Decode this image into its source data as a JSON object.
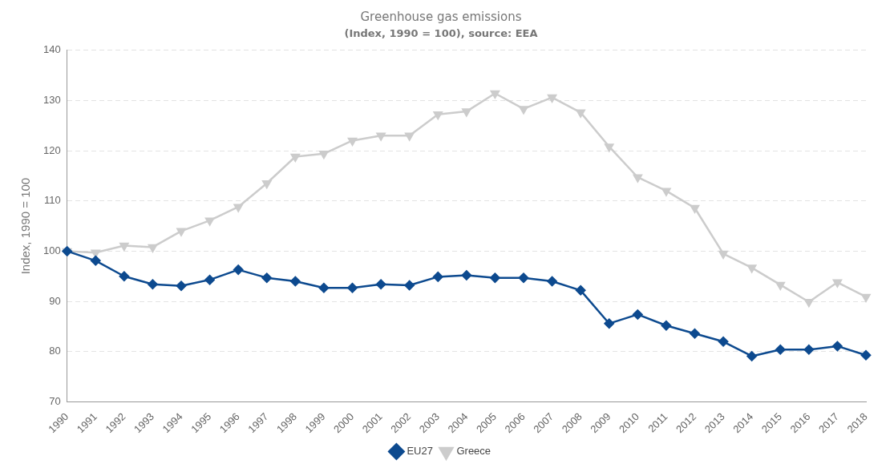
{
  "chart_data": {
    "type": "line",
    "title": "Greenhouse gas emissions",
    "subtitle": "(Index, 1990 = 100), source: EEA",
    "ylabel": "Index, 1990 = 100",
    "categories": [
      "1990",
      "1991",
      "1992",
      "1993",
      "1994",
      "1995",
      "1996",
      "1997",
      "1998",
      "1999",
      "2000",
      "2001",
      "2002",
      "2003",
      "2004",
      "2005",
      "2006",
      "2007",
      "2008",
      "2009",
      "2010",
      "2011",
      "2012",
      "2013",
      "2014",
      "2015",
      "2016",
      "2017",
      "2018"
    ],
    "series": [
      {
        "name": "Greece",
        "color": "#cccccc",
        "marker": "triangle",
        "values": [
          100,
          99.7,
          101.1,
          100.8,
          104,
          106.1,
          108.8,
          113.5,
          118.8,
          119.4,
          122,
          123,
          123,
          127.2,
          127.8,
          131.4,
          128.3,
          130.6,
          127.6,
          120.8,
          114.7,
          112,
          108.6,
          99.5,
          96.7,
          93.3,
          89.9,
          93.8,
          90.9
        ]
      },
      {
        "name": "EU27",
        "color": "#0d4a8f",
        "marker": "diamond",
        "values": [
          100,
          98.1,
          95,
          93.4,
          93.1,
          94.3,
          96.3,
          94.7,
          94,
          92.7,
          92.7,
          93.4,
          93.2,
          94.9,
          95.2,
          94.7,
          94.7,
          94,
          92.2,
          85.6,
          87.4,
          85.2,
          83.6,
          82,
          79.1,
          80.4,
          80.4,
          81.1,
          79.3
        ]
      }
    ],
    "ylim": [
      70,
      140
    ],
    "yticks": [
      70,
      80,
      90,
      100,
      110,
      120,
      130,
      140
    ],
    "grid": "y",
    "legend": "bottom"
  }
}
